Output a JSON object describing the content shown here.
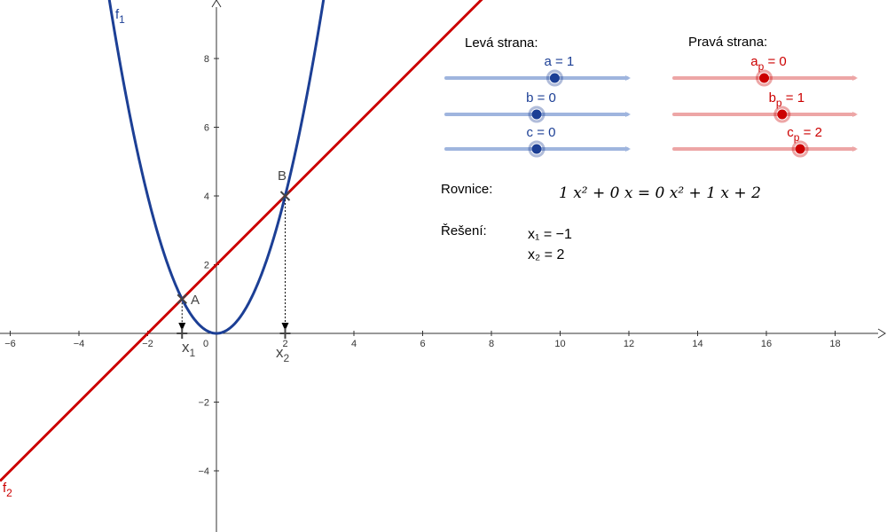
{
  "graph": {
    "x_ticks": [
      "−6",
      "−4",
      "−2",
      "0",
      "2",
      "4",
      "6",
      "8",
      "10",
      "12",
      "14",
      "16",
      "18"
    ],
    "y_ticks": [
      "8",
      "6",
      "4",
      "2",
      "−2",
      "−4"
    ],
    "x_tick_values": [
      -6,
      -4,
      -2,
      0,
      2,
      4,
      6,
      8,
      10,
      12,
      14,
      16,
      18
    ],
    "y_tick_values": [
      8,
      6,
      4,
      2,
      -2,
      -4
    ],
    "f1_label": "f",
    "f1_sub": "1",
    "f2_label": "f",
    "f2_sub": "2",
    "f1_color": "#1c3f95",
    "f2_color": "#cc0000",
    "point_A_label": "A",
    "point_B_label": "B",
    "x1_label": "x",
    "x1_sub": "1",
    "x2_label": "x",
    "x2_sub": "2",
    "point_A": [
      -1,
      1
    ],
    "point_B": [
      2,
      4
    ]
  },
  "left_panel": {
    "title": "Levá strana:",
    "color": "#1c3f95",
    "track_color": "#9fb5de",
    "sliders": [
      {
        "label": "a = 1",
        "value": 1
      },
      {
        "label": "b = 0",
        "value": 0
      },
      {
        "label": "c = 0",
        "value": 0
      }
    ]
  },
  "right_panel": {
    "title": "Pravá strana:",
    "color": "#cc0000",
    "track_color": "#eda6a6",
    "sliders": [
      {
        "label_main": "a",
        "label_sub": "p",
        "label_rest": " = 0",
        "value": 0
      },
      {
        "label_main": "b",
        "label_sub": "p",
        "label_rest": " = 1",
        "value": 1
      },
      {
        "label_main": "c",
        "label_sub": "p",
        "label_rest": " = 2",
        "value": 2
      }
    ]
  },
  "equation": {
    "label": "Rovnice:",
    "text": "1 x² + 0 x = 0 x² + 1 x + 2"
  },
  "solution": {
    "label": "Řešení:",
    "x1": "x₁ = −1",
    "x2": "x₂ = 2"
  }
}
